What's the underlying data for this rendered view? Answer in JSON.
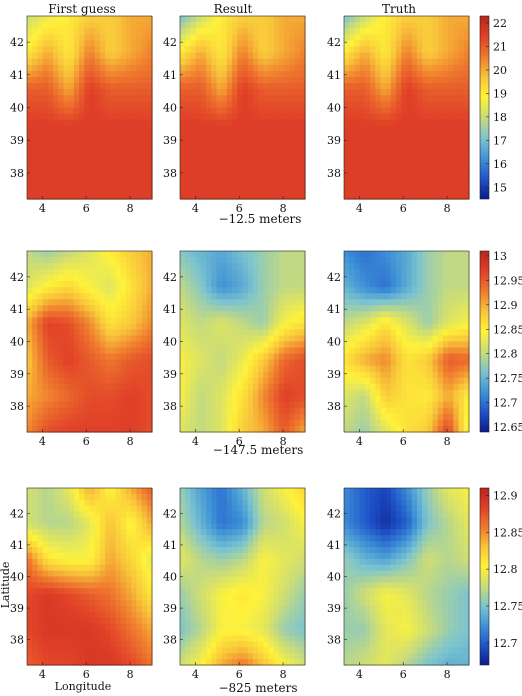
{
  "colors": {
    "colormap": [
      "#0b1a8c",
      "#1f54c9",
      "#3f93d6",
      "#7cc4cf",
      "#c9dc7a",
      "#fff23a",
      "#f8c43a",
      "#ef7a2e",
      "#e04028",
      "#b8261d"
    ]
  },
  "chart_data": {
    "type": "heatmap",
    "column_titles": [
      "First guess",
      "Result",
      "Truth"
    ],
    "x_ticks": [
      4,
      6,
      8
    ],
    "y_ticks": [
      38,
      39,
      40,
      41,
      42
    ],
    "xlim": [
      3.3,
      9.0
    ],
    "ylim": [
      37.2,
      42.8
    ],
    "xlabel": "Longitude",
    "ylabel": "Latitude",
    "rows": [
      {
        "depth_label": "−12.5 meters",
        "colorbar": {
          "min": 14.5,
          "max": 22.3,
          "ticks": [
            "15",
            "16",
            "17",
            "18",
            "19",
            "20",
            "21",
            "22"
          ],
          "tick_values": [
            15,
            16,
            17,
            18,
            19,
            20,
            21,
            22
          ]
        },
        "panels": [
          {
            "name": "First guess",
            "grid": [
              [
                18,
                18.5,
                19,
                19.5,
                19.5,
                20,
                20
              ],
              [
                19,
                20,
                19,
                20.5,
                19.5,
                20,
                20.5
              ],
              [
                21,
                21,
                20,
                21.5,
                21,
                21,
                21
              ],
              [
                21.5,
                21.5,
                21.5,
                21.5,
                21.5,
                21.5,
                21.5
              ],
              [
                21.5,
                21.5,
                21.5,
                21.5,
                21.5,
                21.5,
                21.5
              ],
              [
                21.5,
                21.5,
                21.5,
                21.5,
                21.5,
                21.5,
                21.5
              ]
            ]
          },
          {
            "name": "Result",
            "grid": [
              [
                17,
                18,
                19,
                19.5,
                19.5,
                20,
                20
              ],
              [
                19,
                20,
                19,
                20.5,
                19.5,
                20,
                20.5
              ],
              [
                21,
                21,
                20,
                21.5,
                21,
                21,
                21
              ],
              [
                21.5,
                21.5,
                21.5,
                21.5,
                21.5,
                21.5,
                21.5
              ],
              [
                21.5,
                21.5,
                21.5,
                21.5,
                21.5,
                21.5,
                21.5
              ],
              [
                21.5,
                21.5,
                21.5,
                21.5,
                21.5,
                21.5,
                21.5
              ]
            ]
          },
          {
            "name": "Truth",
            "grid": [
              [
                17,
                18,
                19,
                19.5,
                19.5,
                20,
                20
              ],
              [
                19,
                20,
                19,
                20.5,
                19.5,
                20,
                20.5
              ],
              [
                21,
                21,
                20,
                21.5,
                21,
                21,
                21
              ],
              [
                21.5,
                21.5,
                21.5,
                21.5,
                21.5,
                21.5,
                21.5
              ],
              [
                21.5,
                21.5,
                21.5,
                21.5,
                21.5,
                21.5,
                21.5
              ],
              [
                21.5,
                21.5,
                21.5,
                21.5,
                21.5,
                21.5,
                21.5
              ]
            ]
          }
        ]
      },
      {
        "depth_label": "−147.5 meters",
        "colorbar": {
          "min": 12.64,
          "max": 13.01,
          "ticks": [
            "12.65",
            "12.7",
            "12.75",
            "12.8",
            "12.85",
            "12.9",
            "12.95",
            "13"
          ],
          "tick_values": [
            12.65,
            12.7,
            12.75,
            12.8,
            12.85,
            12.9,
            12.95,
            13.0
          ]
        },
        "panels": [
          {
            "name": "First guess",
            "grid": [
              [
                12.8,
                12.78,
                12.8,
                12.82,
                12.85,
                12.88,
                12.9
              ],
              [
                12.82,
                12.85,
                12.87,
                12.84,
                12.82,
                12.86,
                12.9
              ],
              [
                12.9,
                12.97,
                12.96,
                12.92,
                12.86,
                12.88,
                12.92
              ],
              [
                12.88,
                12.95,
                12.97,
                12.95,
                12.93,
                12.95,
                12.96
              ],
              [
                12.9,
                12.92,
                12.94,
                12.96,
                12.96,
                12.97,
                12.96
              ],
              [
                12.92,
                12.96,
                12.97,
                12.97,
                12.97,
                12.97,
                12.96
              ]
            ]
          },
          {
            "name": "Result",
            "grid": [
              [
                12.77,
                12.75,
                12.74,
                12.76,
                12.78,
                12.8,
                12.8
              ],
              [
                12.8,
                12.77,
                12.72,
                12.74,
                12.78,
                12.8,
                12.8
              ],
              [
                12.82,
                12.8,
                12.82,
                12.8,
                12.78,
                12.84,
                12.86
              ],
              [
                12.84,
                12.82,
                12.8,
                12.83,
                12.88,
                12.94,
                12.96
              ],
              [
                12.84,
                12.8,
                12.82,
                12.86,
                12.92,
                12.97,
                12.96
              ],
              [
                12.82,
                12.8,
                12.82,
                12.88,
                12.9,
                12.95,
                12.9
              ]
            ]
          },
          {
            "name": "Truth",
            "grid": [
              [
                12.72,
                12.7,
                12.72,
                12.74,
                12.78,
                12.8,
                12.8
              ],
              [
                12.75,
                12.72,
                12.7,
                12.74,
                12.78,
                12.8,
                12.8
              ],
              [
                12.8,
                12.82,
                12.86,
                12.82,
                12.78,
                12.82,
                12.84
              ],
              [
                12.86,
                12.9,
                12.92,
                12.86,
                12.88,
                12.95,
                12.94
              ],
              [
                12.82,
                12.8,
                12.88,
                12.86,
                12.85,
                12.9,
                12.85
              ],
              [
                12.8,
                12.78,
                12.82,
                12.86,
                12.88,
                12.97,
                12.82
              ]
            ]
          }
        ]
      },
      {
        "depth_label": "−825 meters",
        "colorbar": {
          "min": 12.67,
          "max": 12.91,
          "ticks": [
            "12.7",
            "12.75",
            "12.8",
            "12.85",
            "12.9"
          ],
          "tick_values": [
            12.7,
            12.75,
            12.8,
            12.85,
            12.9
          ]
        },
        "panels": [
          {
            "name": "First guess",
            "grid": [
              [
                12.78,
                12.77,
                12.79,
                12.84,
                12.8,
                12.84,
                12.87
              ],
              [
                12.78,
                12.77,
                12.77,
                12.79,
                12.83,
                12.8,
                12.84
              ],
              [
                12.86,
                12.81,
                12.8,
                12.8,
                12.84,
                12.82,
                12.79
              ],
              [
                12.88,
                12.89,
                12.88,
                12.87,
                12.86,
                12.84,
                12.81
              ],
              [
                12.88,
                12.89,
                12.89,
                12.89,
                12.88,
                12.86,
                12.84
              ],
              [
                12.87,
                12.88,
                12.88,
                12.89,
                12.89,
                12.88,
                12.86
              ]
            ]
          },
          {
            "name": "Result",
            "grid": [
              [
                12.76,
                12.73,
                12.71,
                12.74,
                12.78,
                12.8,
                12.82
              ],
              [
                12.77,
                12.74,
                12.71,
                12.72,
                12.77,
                12.78,
                12.8
              ],
              [
                12.79,
                12.77,
                12.76,
                12.77,
                12.8,
                12.79,
                12.78
              ],
              [
                12.76,
                12.78,
                12.8,
                12.81,
                12.8,
                12.78,
                12.76
              ],
              [
                12.75,
                12.77,
                12.8,
                12.8,
                12.79,
                12.76,
                12.75
              ],
              [
                12.78,
                12.8,
                12.84,
                12.86,
                12.83,
                12.8,
                12.78
              ]
            ]
          },
          {
            "name": "Truth",
            "grid": [
              [
                12.72,
                12.7,
                12.69,
                12.72,
                12.76,
                12.79,
                12.8
              ],
              [
                12.72,
                12.7,
                12.68,
                12.7,
                12.75,
                12.77,
                12.79
              ],
              [
                12.76,
                12.74,
                12.73,
                12.75,
                12.78,
                12.77,
                12.78
              ],
              [
                12.76,
                12.78,
                12.8,
                12.79,
                12.77,
                12.76,
                12.75
              ],
              [
                12.76,
                12.76,
                12.79,
                12.8,
                12.78,
                12.76,
                12.75
              ],
              [
                12.77,
                12.78,
                12.79,
                12.77,
                12.75,
                12.74,
                12.74
              ]
            ]
          }
        ]
      }
    ]
  }
}
